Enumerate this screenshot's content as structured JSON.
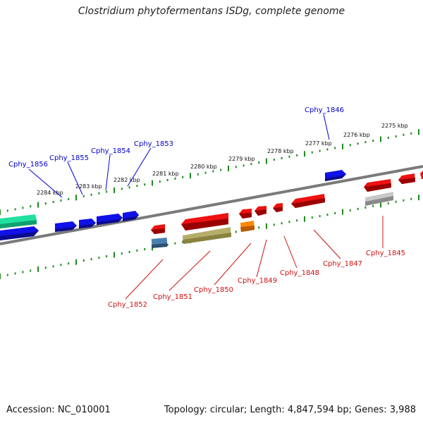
{
  "title": "Clostridium phytofermentans ISDg, complete genome",
  "accession": "Accession: NC_010001",
  "summary": "Topology: circular; Length: 4,847,594 bp; Genes: 3,988",
  "colors": {
    "forward_gene": "#1010e8",
    "reverse_gene": "#ee1111",
    "forward_label": "#0000cc",
    "reverse_label": "#cc1111",
    "backbone": "#808080",
    "ticks": "#1f8a1f",
    "rrna": "#20e0a0",
    "olive": "#b5ae6a",
    "orange": "#ff8800",
    "steel": "#4a80b0",
    "grey_feature": "#b8b8b8"
  },
  "scale_labels": [
    "2284 kbp",
    "2283 kbp",
    "2282 kbp",
    "2281 kbp",
    "2280 kbp",
    "2279 kbp",
    "2278 kbp",
    "2277 kbp",
    "2276 kbp",
    "2275 kbp"
  ],
  "forward_genes": [
    "Cphy_1856",
    "Cphy_1855",
    "Cphy_1854",
    "Cphy_1853",
    "Cphy_1846"
  ],
  "reverse_genes": [
    "Cphy_1852",
    "Cphy_1851",
    "Cphy_1850",
    "Cphy_1849",
    "Cphy_1848",
    "Cphy_1847",
    "Cphy_1845"
  ]
}
